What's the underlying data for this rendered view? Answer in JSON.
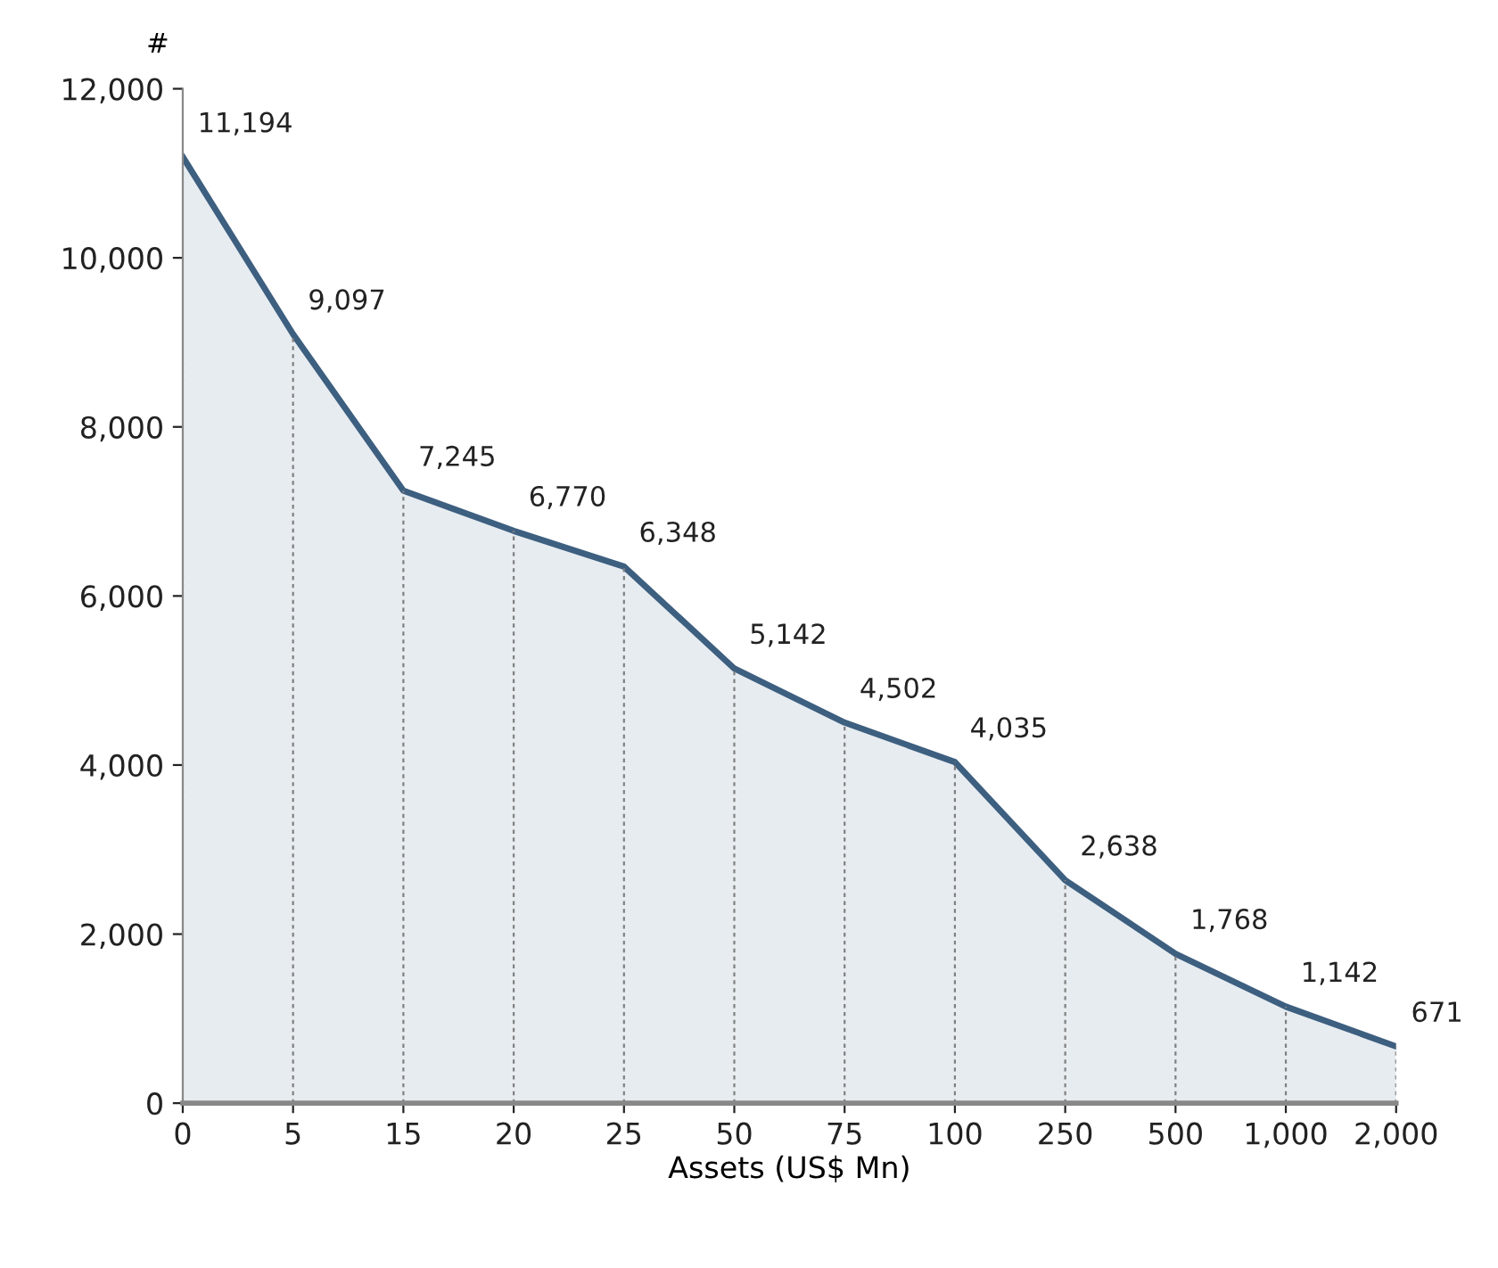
{
  "chart_data": {
    "type": "area",
    "ylabel": "#",
    "xlabel": "Assets (US$ Mn)",
    "categories": [
      "0",
      "5",
      "15",
      "20",
      "25",
      "50",
      "75",
      "100",
      "250",
      "500",
      "1,000",
      "2,000"
    ],
    "series": [
      {
        "color": "#3d5f80",
        "values": [
          11194,
          9097,
          7245,
          6770,
          6348,
          5142,
          4502,
          4035,
          2638,
          1768,
          1142,
          671
        ],
        "value_labels": [
          "11,194",
          "9,097",
          "7,245",
          "6,770",
          "6,348",
          "5,142",
          "4,502",
          "4,035",
          "2,638",
          "1,768",
          "1,142",
          "671"
        ]
      }
    ],
    "ylim": [
      0,
      12000
    ],
    "yticks": [
      {
        "value": 0,
        "label": "0"
      },
      {
        "value": 2000,
        "label": "2,000"
      },
      {
        "value": 4000,
        "label": "4,000"
      },
      {
        "value": 6000,
        "label": "6,000"
      },
      {
        "value": 8000,
        "label": "8,000"
      },
      {
        "value": 10000,
        "label": "10,000"
      },
      {
        "value": 12000,
        "label": "12,000"
      }
    ],
    "grid": "x",
    "legend": false
  }
}
